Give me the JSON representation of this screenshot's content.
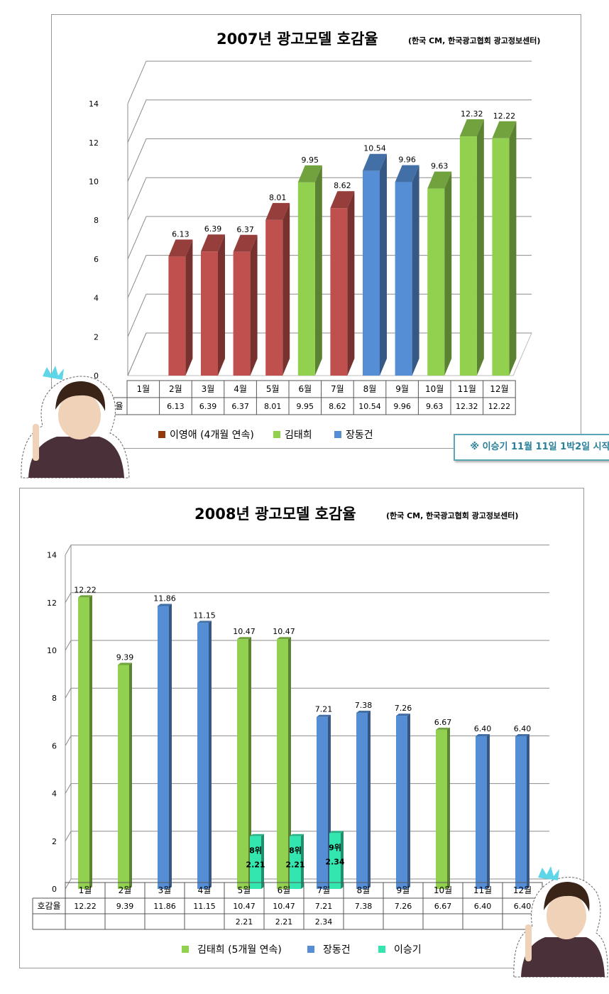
{
  "colors": {
    "red": "#c0504d",
    "green": "#92d050",
    "blue": "#558ed5",
    "teal": "#33e6b0",
    "legend_brown": "#943a0a"
  },
  "chart1": {
    "title": "2007년 광고모델 호감율",
    "source": "(한국 CM, 한국광고협회 광고정보센터)",
    "note": "※ 이승기 11월 11일 1박2일 시작"
  },
  "chart2": {
    "title": "2008년 광고모델 호감율",
    "source": "(한국 CM, 한국광고협회 광고정보센터)"
  },
  "chart_data": [
    {
      "type": "bar",
      "title": "2007년 광고모델 호감율",
      "categories": [
        "1월",
        "2월",
        "3월",
        "4월",
        "5월",
        "6월",
        "7월",
        "8월",
        "9월",
        "10월",
        "11월",
        "12월"
      ],
      "series": [
        {
          "name": "호감율",
          "values": [
            null,
            6.13,
            6.39,
            6.37,
            8.01,
            9.95,
            8.62,
            10.54,
            9.96,
            9.63,
            12.32,
            12.22
          ]
        }
      ],
      "value_labels": [
        "",
        "6.13",
        "6.39",
        "6.37",
        "8.01",
        "9.95",
        "8.62",
        "10.54",
        "9.96",
        "9.63",
        "12.32",
        "12.22"
      ],
      "bar_models": [
        "",
        "이영애",
        "이영애",
        "이영애",
        "이영애",
        "김태희",
        "이영애",
        "장동건",
        "장동건",
        "김태희",
        "김태희",
        "김태희"
      ],
      "legend": [
        {
          "name": "이영애 (4개월 연속)",
          "color": "#943a0a"
        },
        {
          "name": "김태희",
          "color": "#92d050"
        },
        {
          "name": "장동건",
          "color": "#558ed5"
        }
      ],
      "table_row_label": "호감율",
      "ylim": [
        0,
        14
      ],
      "yticks": [
        0,
        2,
        4,
        6,
        8,
        10,
        12,
        14
      ],
      "grid": true,
      "legend_position": "bottom"
    },
    {
      "type": "bar",
      "title": "2008년 광고모델 호감율",
      "categories": [
        "1월",
        "2월",
        "3월",
        "4월",
        "5월",
        "6월",
        "7월",
        "8월",
        "9월",
        "10월",
        "11월",
        "12월"
      ],
      "series": [
        {
          "name": "호감율",
          "values": [
            12.22,
            9.39,
            11.86,
            11.15,
            10.47,
            10.47,
            7.21,
            7.38,
            7.26,
            6.67,
            6.4,
            6.4
          ]
        },
        {
          "name": "이승기",
          "values": [
            null,
            null,
            null,
            null,
            2.21,
            2.21,
            2.34,
            null,
            null,
            null,
            null,
            null
          ]
        }
      ],
      "value_labels": [
        "12.22",
        "9.39",
        "11.86",
        "11.15",
        "10.47",
        "10.47",
        "7.21",
        "7.38",
        "7.26",
        "6.67",
        "6.40",
        "6.40"
      ],
      "second_labels": [
        "",
        "",
        "",
        "",
        "2.21",
        "2.21",
        "2.34",
        "",
        "",
        "",
        "",
        ""
      ],
      "rank_labels": [
        "",
        "",
        "",
        "",
        "8위",
        "8위",
        "9위",
        "",
        "",
        "",
        "",
        ""
      ],
      "bar_models": [
        "김태희",
        "김태희",
        "장동건",
        "장동건",
        "김태희",
        "김태희",
        "장동건",
        "장동건",
        "장동건",
        "김태희",
        "장동건",
        "장동건"
      ],
      "legend": [
        {
          "name": "김태희 (5개월 연속)",
          "color": "#92d050"
        },
        {
          "name": "장동건",
          "color": "#558ed5"
        },
        {
          "name": "이승기",
          "color": "#33e6b0"
        }
      ],
      "table_row_label": "호감율",
      "ylim": [
        0,
        14
      ],
      "yticks": [
        0,
        2,
        4,
        6,
        8,
        10,
        12,
        14
      ],
      "grid": true,
      "legend_position": "bottom"
    }
  ]
}
